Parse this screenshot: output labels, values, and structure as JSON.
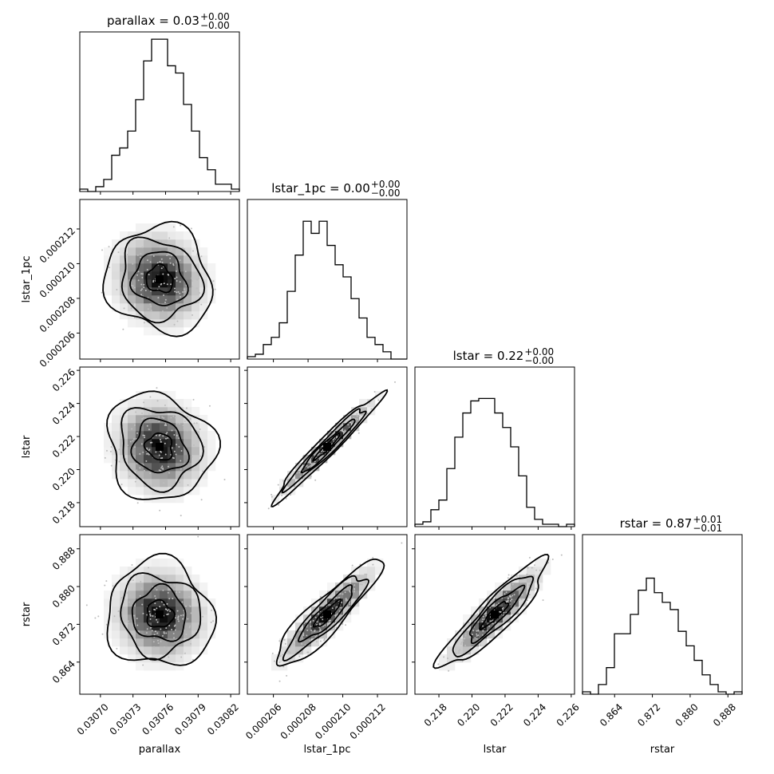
{
  "chart_data": {
    "type": "corner",
    "parameters": [
      "parallax",
      "lstar_1pc",
      "lstar",
      "rstar"
    ],
    "titles": {
      "parallax": {
        "prefix": "parallax = 0.03",
        "sup": "+0.00",
        "sub": "−0.00"
      },
      "lstar_1pc": {
        "prefix": "lstar_1pc = 0.00",
        "sup": "+0.00",
        "sub": "−0.00"
      },
      "lstar": {
        "prefix": "lstar = 0.22",
        "sup": "+0.00",
        "sub": "−0.00"
      },
      "rstar": {
        "prefix": "rstar = 0.87",
        "sup": "+0.01",
        "sub": "−0.01"
      }
    },
    "axis_labels": {
      "parallax": "parallax",
      "lstar_1pc": "lstar_1pc",
      "lstar": "lstar",
      "rstar": "rstar"
    },
    "ranges": {
      "parallax": [
        0.030681,
        0.030828
      ],
      "lstar_1pc": [
        0.0002045,
        0.0002137
      ],
      "lstar": [
        0.21655,
        0.2262
      ],
      "rstar": [
        0.8572,
        0.891
      ]
    },
    "ticks": {
      "parallax": [
        0.0307,
        0.03073,
        0.03076,
        0.03079,
        0.03082
      ],
      "lstar_1pc": [
        0.000206,
        0.000208,
        0.00021,
        0.000212
      ],
      "lstar": [
        0.218,
        0.22,
        0.222,
        0.224,
        0.226
      ],
      "rstar": [
        0.864,
        0.872,
        0.88,
        0.888
      ]
    },
    "tick_labels": {
      "parallax": [
        "0.03070",
        "0.03073",
        "0.03076",
        "0.03079",
        "0.03082"
      ],
      "lstar_1pc": [
        "0.000206",
        "0.000208",
        "0.000210",
        "0.000212"
      ],
      "lstar": [
        "0.218",
        "0.220",
        "0.222",
        "0.224",
        "0.226"
      ],
      "rstar": [
        "0.864",
        "0.872",
        "0.880",
        "0.888"
      ]
    },
    "histograms": {
      "parallax": [
        1,
        0,
        2,
        5,
        15,
        18,
        25,
        38,
        54,
        63,
        63,
        52,
        49,
        36,
        25,
        14,
        9,
        3,
        3,
        1
      ],
      "lstar_1pc": [
        1,
        2,
        6,
        9,
        15,
        28,
        43,
        57,
        52,
        57,
        47,
        39,
        34,
        25,
        17,
        9,
        6,
        3,
        0,
        0
      ],
      "lstar": [
        1,
        2,
        7,
        11,
        24,
        37,
        47,
        52,
        53,
        53,
        47,
        41,
        33,
        21,
        8,
        3,
        1,
        1,
        0,
        1
      ],
      "rstar": [
        1,
        0,
        4,
        11,
        25,
        25,
        33,
        43,
        48,
        42,
        38,
        35,
        26,
        20,
        14,
        8,
        4,
        1,
        0,
        1
      ]
    },
    "hist_ymax": 66,
    "correlations": {
      "lstar_1pc|parallax": -0.1,
      "lstar|parallax": -0.1,
      "lstar|lstar_1pc": 0.97,
      "rstar|parallax": -0.05,
      "rstar|lstar_1pc": 0.9,
      "rstar|lstar": 0.9
    },
    "contour_levels_sigma": [
      0.5,
      1.0,
      1.5,
      2.0
    ],
    "grid": false,
    "legend": "none"
  }
}
